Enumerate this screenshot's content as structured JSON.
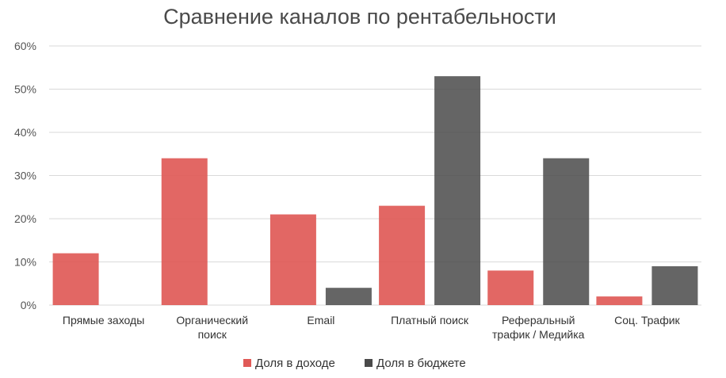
{
  "chart_data": {
    "type": "bar",
    "title": "Сравнение каналов по рентабельности",
    "xlabel": "",
    "ylabel": "",
    "ylim": [
      0,
      60
    ],
    "y_ticks": [
      "0%",
      "10%",
      "20%",
      "30%",
      "40%",
      "50%",
      "60%"
    ],
    "categories": [
      [
        "Прямые заходы"
      ],
      [
        "Органический",
        "поиск"
      ],
      [
        "Email"
      ],
      [
        "Платный поиск"
      ],
      [
        "Реферальный",
        "трафик / Медийка"
      ],
      [
        "Соц. Трафик"
      ]
    ],
    "series": [
      {
        "name": "Доля в доходе",
        "color": "#e05a57",
        "values": [
          12,
          34,
          21,
          23,
          8,
          2
        ]
      },
      {
        "name": "Доля в бюджете",
        "color": "#4a4a4a",
        "values": [
          0,
          0,
          4,
          53,
          34,
          9
        ]
      }
    ],
    "grid": true,
    "legend_position": "bottom"
  }
}
